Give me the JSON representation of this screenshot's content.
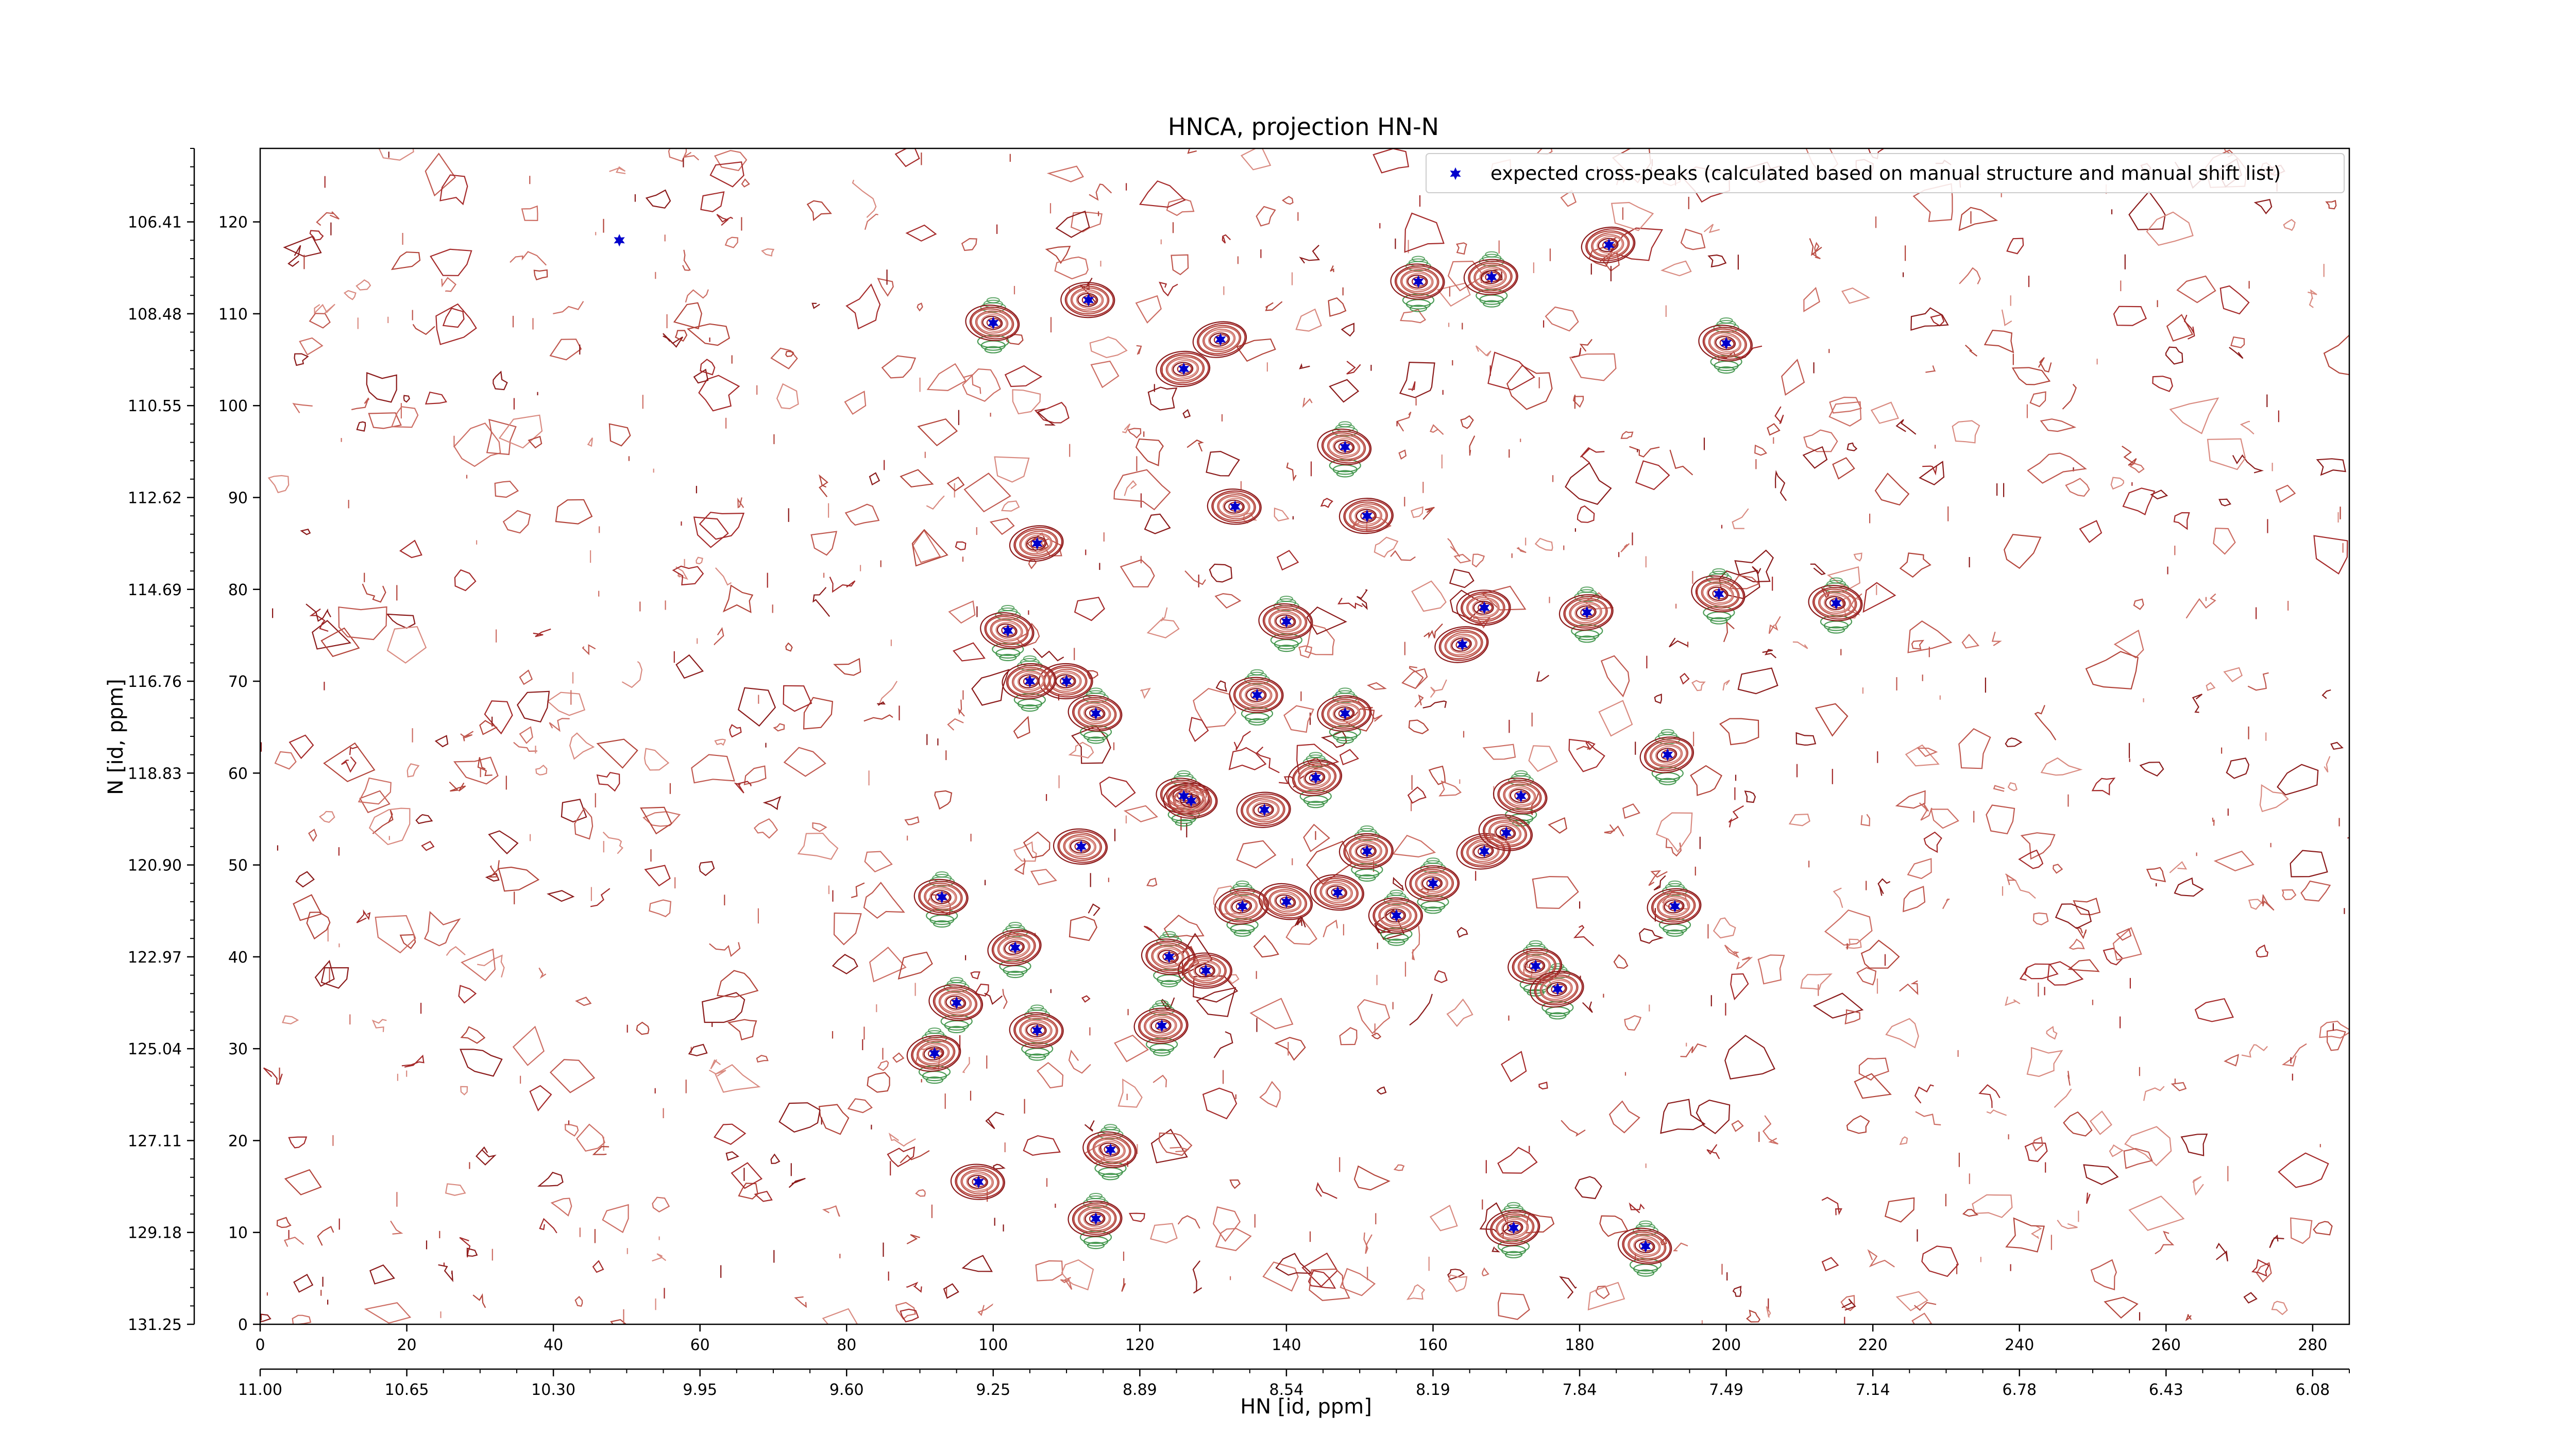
{
  "chart_data": {
    "type": "scatter",
    "title": "HNCA, projection HN-N",
    "xlabel": "HN [id, ppm]",
    "ylabel": "N [id, ppm]",
    "xlim": [
      0,
      285
    ],
    "ylim": [
      0,
      128
    ],
    "x_ticks_index": [
      "0",
      "20",
      "40",
      "60",
      "80",
      "100",
      "120",
      "140",
      "160",
      "180",
      "200",
      "220",
      "240",
      "260",
      "280"
    ],
    "x_ticks_ppm": [
      "11.00",
      "10.65",
      "10.30",
      "9.95",
      "9.60",
      "9.25",
      "8.89",
      "8.54",
      "8.19",
      "7.84",
      "7.49",
      "7.14",
      "6.78",
      "6.43",
      "6.08"
    ],
    "y_ticks_index": [
      "0",
      "10",
      "20",
      "30",
      "40",
      "50",
      "60",
      "70",
      "80",
      "90",
      "100",
      "110",
      "120"
    ],
    "y_ticks_ppm": [
      "131.25",
      "129.18",
      "127.11",
      "125.04",
      "122.97",
      "120.90",
      "118.83",
      "116.76",
      "114.69",
      "112.62",
      "110.55",
      "108.48",
      "106.41"
    ],
    "legend": {
      "position": "top-right",
      "label": "expected cross-peaks (calculated based on manual structure and manual shift list)"
    },
    "colors": {
      "marker": "#0000cc",
      "positive_contours": "#a52a2a",
      "negative_contours": "#2e8b3a"
    },
    "series": [
      {
        "name": "expected cross-peaks (calculated based on manual structure and manual shift list)",
        "points": [
          [
            49,
            118
          ],
          [
            100,
            109
          ],
          [
            113,
            111.5
          ],
          [
            126,
            104
          ],
          [
            131,
            107.2
          ],
          [
            148,
            95.5
          ],
          [
            158,
            113.5
          ],
          [
            168,
            114
          ],
          [
            184,
            117.5
          ],
          [
            200,
            106.8
          ],
          [
            133,
            89
          ],
          [
            151,
            88
          ],
          [
            106,
            85
          ],
          [
            102,
            75.5
          ],
          [
            140,
            76.5
          ],
          [
            167,
            78
          ],
          [
            181,
            77.5
          ],
          [
            199,
            79.5
          ],
          [
            215,
            78.5
          ],
          [
            110,
            70
          ],
          [
            105,
            70
          ],
          [
            164,
            74
          ],
          [
            114,
            66.5
          ],
          [
            136,
            68.5
          ],
          [
            148,
            66.5
          ],
          [
            192,
            62
          ],
          [
            126,
            57.5
          ],
          [
            127,
            57
          ],
          [
            137,
            56
          ],
          [
            144,
            59.5
          ],
          [
            172,
            57.5
          ],
          [
            112,
            52
          ],
          [
            151,
            51.5
          ],
          [
            167,
            51.5
          ],
          [
            170,
            53.5
          ],
          [
            93,
            46.5
          ],
          [
            160,
            48
          ],
          [
            134,
            45.5
          ],
          [
            140,
            46
          ],
          [
            147,
            47
          ],
          [
            155,
            44.5
          ],
          [
            193,
            45.5
          ],
          [
            103,
            41
          ],
          [
            124,
            40
          ],
          [
            129,
            38.5
          ],
          [
            174,
            39
          ],
          [
            177,
            36.5
          ],
          [
            95,
            35
          ],
          [
            106,
            32
          ],
          [
            123,
            32.5
          ],
          [
            92,
            29.5
          ],
          [
            116,
            19
          ],
          [
            98,
            15.5
          ],
          [
            114,
            11.5
          ],
          [
            171,
            10.5
          ],
          [
            189,
            8.5
          ]
        ]
      }
    ],
    "negative_contour_peaks": [
      [
        100,
        109
      ],
      [
        158,
        113.5
      ],
      [
        168,
        114
      ],
      [
        200,
        106.8
      ],
      [
        148,
        95.5
      ],
      [
        140,
        76.5
      ],
      [
        181,
        77.5
      ],
      [
        199,
        79.5
      ],
      [
        215,
        78.5
      ],
      [
        102,
        75.5
      ],
      [
        105,
        70
      ],
      [
        114,
        66.5
      ],
      [
        136,
        68.5
      ],
      [
        148,
        66.5
      ],
      [
        192,
        62
      ],
      [
        126,
        57.5
      ],
      [
        144,
        59.5
      ],
      [
        172,
        57.5
      ],
      [
        151,
        51.5
      ],
      [
        93,
        46.5
      ],
      [
        160,
        48
      ],
      [
        134,
        45.5
      ],
      [
        155,
        44.5
      ],
      [
        193,
        45.5
      ],
      [
        103,
        41
      ],
      [
        124,
        40
      ],
      [
        174,
        39
      ],
      [
        177,
        36.5
      ],
      [
        95,
        35
      ],
      [
        106,
        32
      ],
      [
        123,
        32.5
      ],
      [
        92,
        29.5
      ],
      [
        116,
        19
      ],
      [
        114,
        11.5
      ],
      [
        171,
        10.5
      ],
      [
        189,
        8.5
      ]
    ],
    "grid": false
  }
}
